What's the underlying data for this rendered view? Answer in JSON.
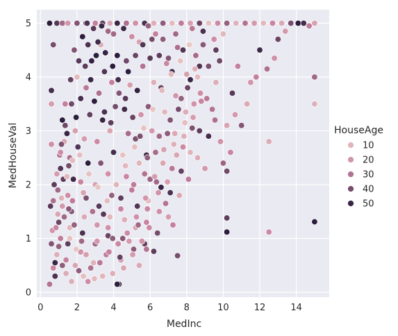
{
  "chart_data": {
    "type": "scatter",
    "title": "",
    "xlabel": "MedInc",
    "ylabel": "MedHouseVal",
    "xlim": [
      -0.2,
      15.8
    ],
    "ylim": [
      -0.09,
      5.25
    ],
    "x_ticks": [
      0,
      2,
      4,
      6,
      8,
      10,
      12,
      14
    ],
    "y_ticks": [
      0,
      1,
      2,
      3,
      4,
      5
    ],
    "grid": true,
    "background": "#EAEAF2",
    "hue": {
      "name": "HouseAge",
      "legend_title": "HouseAge",
      "legend_placement": "right",
      "min": 1,
      "max": 52,
      "color_low": "#EDD1CB",
      "color_high": "#2D1E3E",
      "legend_entries": [
        {
          "label": "10",
          "value": 10
        },
        {
          "label": "20",
          "value": 20
        },
        {
          "label": "30",
          "value": 30
        },
        {
          "label": "40",
          "value": 40
        },
        {
          "label": "50",
          "value": 50
        }
      ]
    },
    "points": [
      [
        0.5,
        5.0,
        52
      ],
      [
        0.9,
        5.0,
        45
      ],
      [
        1.2,
        5.0,
        33
      ],
      [
        1.5,
        5.0,
        20
      ],
      [
        2.0,
        5.0,
        38
      ],
      [
        2.5,
        5.0,
        52
      ],
      [
        3.0,
        5.0,
        27
      ],
      [
        3.4,
        5.0,
        44
      ],
      [
        3.8,
        5.0,
        15
      ],
      [
        4.2,
        5.0,
        50
      ],
      [
        4.7,
        5.0,
        31
      ],
      [
        5.2,
        5.0,
        22
      ],
      [
        5.7,
        5.0,
        47
      ],
      [
        6.2,
        5.0,
        12
      ],
      [
        6.7,
        5.0,
        36
      ],
      [
        7.2,
        5.0,
        8
      ],
      [
        7.7,
        5.0,
        28
      ],
      [
        8.2,
        5.0,
        17
      ],
      [
        8.7,
        5.0,
        42
      ],
      [
        9.2,
        5.0,
        6
      ],
      [
        9.7,
        5.0,
        24
      ],
      [
        10.2,
        5.0,
        35
      ],
      [
        10.7,
        5.0,
        11
      ],
      [
        11.2,
        5.0,
        30
      ],
      [
        11.7,
        5.0,
        19
      ],
      [
        12.2,
        5.0,
        9
      ],
      [
        12.7,
        5.0,
        26
      ],
      [
        13.2,
        5.0,
        14
      ],
      [
        13.7,
        5.0,
        40
      ],
      [
        14.1,
        5.0,
        52
      ],
      [
        14.4,
        5.0,
        48
      ],
      [
        15.0,
        5.0,
        16
      ],
      [
        0.5,
        0.15,
        30
      ],
      [
        0.7,
        0.45,
        25
      ],
      [
        0.6,
        0.9,
        38
      ],
      [
        0.55,
        1.6,
        45
      ],
      [
        0.6,
        2.75,
        22
      ],
      [
        0.6,
        3.5,
        18
      ],
      [
        0.6,
        3.75,
        48
      ],
      [
        0.7,
        4.6,
        40
      ],
      [
        0.8,
        0.55,
        50
      ],
      [
        0.9,
        0.7,
        12
      ],
      [
        1.0,
        0.85,
        35
      ],
      [
        1.1,
        1.0,
        28
      ],
      [
        1.0,
        1.3,
        42
      ],
      [
        1.2,
        1.6,
        19
      ],
      [
        0.95,
        1.9,
        33
      ],
      [
        1.1,
        2.3,
        46
      ],
      [
        1.3,
        2.8,
        15
      ],
      [
        1.2,
        3.2,
        52
      ],
      [
        1.4,
        0.6,
        27
      ],
      [
        1.5,
        0.9,
        44
      ],
      [
        1.6,
        1.2,
        10
      ],
      [
        1.7,
        1.5,
        37
      ],
      [
        1.5,
        1.8,
        23
      ],
      [
        1.8,
        2.1,
        49
      ],
      [
        1.6,
        2.5,
        31
      ],
      [
        1.9,
        3.0,
        17
      ],
      [
        1.7,
        3.5,
        41
      ],
      [
        2.0,
        4.0,
        8
      ],
      [
        2.1,
        0.4,
        36
      ],
      [
        2.2,
        0.75,
        21
      ],
      [
        2.3,
        1.1,
        47
      ],
      [
        2.4,
        1.4,
        14
      ],
      [
        2.5,
        1.75,
        39
      ],
      [
        2.2,
        2.05,
        26
      ],
      [
        2.6,
        2.4,
        52
      ],
      [
        2.4,
        2.85,
        18
      ],
      [
        2.7,
        3.3,
        43
      ],
      [
        2.5,
        3.8,
        29
      ],
      [
        2.8,
        4.3,
        51
      ],
      [
        2.9,
        0.55,
        11
      ],
      [
        3.0,
        0.9,
        34
      ],
      [
        3.1,
        1.25,
        20
      ],
      [
        3.2,
        1.6,
        45
      ],
      [
        3.0,
        2.0,
        16
      ],
      [
        3.3,
        2.4,
        38
      ],
      [
        3.1,
        2.8,
        24
      ],
      [
        3.4,
        3.2,
        50
      ],
      [
        3.2,
        3.7,
        31
      ],
      [
        3.5,
        4.1,
        46
      ],
      [
        3.3,
        4.6,
        13
      ],
      [
        3.6,
        0.7,
        28
      ],
      [
        3.7,
        1.05,
        42
      ],
      [
        3.8,
        1.4,
        9
      ],
      [
        3.9,
        1.8,
        35
      ],
      [
        3.7,
        2.2,
        22
      ],
      [
        4.0,
        2.6,
        48
      ],
      [
        3.8,
        3.0,
        15
      ],
      [
        4.1,
        3.45,
        40
      ],
      [
        3.9,
        3.9,
        27
      ],
      [
        4.2,
        4.4,
        52
      ],
      [
        4.0,
        4.8,
        33
      ],
      [
        4.3,
        0.15,
        47
      ],
      [
        4.4,
        0.6,
        19
      ],
      [
        4.5,
        1.0,
        37
      ],
      [
        4.6,
        1.35,
        12
      ],
      [
        4.4,
        1.75,
        44
      ],
      [
        4.7,
        2.15,
        25
      ],
      [
        4.5,
        2.55,
        6
      ],
      [
        4.8,
        2.95,
        32
      ],
      [
        4.6,
        3.4,
        49
      ],
      [
        4.9,
        3.85,
        17
      ],
      [
        4.7,
        4.3,
        41
      ],
      [
        5.0,
        4.75,
        23
      ],
      [
        5.1,
        0.8,
        36
      ],
      [
        5.2,
        1.2,
        14
      ],
      [
        5.3,
        1.6,
        46
      ],
      [
        5.1,
        2.0,
        28
      ],
      [
        5.4,
        2.4,
        10
      ],
      [
        5.2,
        2.85,
        39
      ],
      [
        5.5,
        3.3,
        21
      ],
      [
        5.3,
        3.75,
        51
      ],
      [
        5.6,
        4.2,
        30
      ],
      [
        5.4,
        4.65,
        16
      ],
      [
        5.7,
        0.9,
        43
      ],
      [
        5.8,
        1.3,
        26
      ],
      [
        5.9,
        1.7,
        8
      ],
      [
        6.0,
        2.1,
        34
      ],
      [
        5.8,
        2.55,
        48
      ],
      [
        6.1,
        3.0,
        19
      ],
      [
        5.9,
        3.45,
        37
      ],
      [
        6.2,
        3.9,
        12
      ],
      [
        6.0,
        4.35,
        45
      ],
      [
        6.3,
        4.8,
        27
      ],
      [
        6.4,
        1.1,
        40
      ],
      [
        6.5,
        1.5,
        22
      ],
      [
        6.6,
        1.95,
        50
      ],
      [
        6.7,
        2.4,
        15
      ],
      [
        6.5,
        2.9,
        33
      ],
      [
        6.8,
        3.35,
        9
      ],
      [
        6.6,
        3.8,
        42
      ],
      [
        6.9,
        4.25,
        25
      ],
      [
        6.7,
        4.7,
        36
      ],
      [
        7.0,
        1.4,
        18
      ],
      [
        7.1,
        1.85,
        47
      ],
      [
        7.2,
        2.3,
        29
      ],
      [
        7.3,
        2.75,
        11
      ],
      [
        7.1,
        3.2,
        38
      ],
      [
        7.4,
        3.65,
        20
      ],
      [
        7.2,
        4.1,
        49
      ],
      [
        7.5,
        4.55,
        31
      ],
      [
        7.6,
        1.8,
        14
      ],
      [
        7.7,
        2.25,
        43
      ],
      [
        7.8,
        2.7,
        24
      ],
      [
        7.9,
        3.15,
        7
      ],
      [
        7.7,
        3.6,
        35
      ],
      [
        8.0,
        4.05,
        17
      ],
      [
        7.8,
        4.5,
        46
      ],
      [
        8.1,
        2.1,
        28
      ],
      [
        8.2,
        2.6,
        10
      ],
      [
        8.3,
        3.05,
        39
      ],
      [
        8.4,
        3.5,
        21
      ],
      [
        8.2,
        3.95,
        50
      ],
      [
        8.5,
        4.4,
        32
      ],
      [
        8.6,
        2.5,
        13
      ],
      [
        8.7,
        3.0,
        44
      ],
      [
        8.8,
        3.55,
        26
      ],
      [
        8.6,
        4.0,
        8
      ],
      [
        8.9,
        4.6,
        37
      ],
      [
        9.0,
        2.3,
        19
      ],
      [
        9.2,
        2.9,
        48
      ],
      [
        9.4,
        3.4,
        30
      ],
      [
        9.6,
        3.9,
        12
      ],
      [
        9.8,
        4.3,
        41
      ],
      [
        9.5,
        4.7,
        23
      ],
      [
        10.0,
        2.4,
        34
      ],
      [
        10.2,
        3.1,
        16
      ],
      [
        10.5,
        3.7,
        45
      ],
      [
        10.8,
        4.2,
        27
      ],
      [
        10.0,
        4.8,
        9
      ],
      [
        11.0,
        3.1,
        38
      ],
      [
        11.5,
        3.9,
        20
      ],
      [
        12.0,
        4.5,
        49
      ],
      [
        12.4,
        4.15,
        31
      ],
      [
        12.5,
        2.8,
        13
      ],
      [
        13.0,
        4.7,
        42
      ],
      [
        10.2,
        1.38,
        44
      ],
      [
        10.2,
        1.12,
        52
      ],
      [
        10.2,
        2.25,
        41
      ],
      [
        12.5,
        1.12,
        24
      ],
      [
        15.0,
        1.31,
        52
      ],
      [
        15.0,
        3.5,
        11
      ],
      [
        15.0,
        4.0,
        33
      ],
      [
        7.5,
        0.68,
        40
      ],
      [
        6.2,
        0.76,
        44
      ],
      [
        5.8,
        0.8,
        30
      ],
      [
        5.4,
        0.5,
        14
      ],
      [
        4.2,
        0.15,
        52
      ],
      [
        2.6,
        0.2,
        23
      ],
      [
        1.7,
        0.2,
        12
      ],
      [
        1.2,
        0.5,
        36
      ],
      [
        0.8,
        0.3,
        47
      ],
      [
        0.65,
        1.15,
        21
      ],
      [
        0.75,
        2.0,
        44
      ],
      [
        1.05,
        2.55,
        30
      ],
      [
        1.35,
        3.5,
        27
      ],
      [
        1.85,
        4.5,
        38
      ],
      [
        2.3,
        4.75,
        52
      ],
      [
        2.9,
        4.9,
        45
      ],
      [
        3.35,
        4.95,
        50
      ],
      [
        3.7,
        4.85,
        33
      ],
      [
        2.6,
        4.6,
        47
      ],
      [
        3.05,
        4.4,
        52
      ],
      [
        2.45,
        4.2,
        44
      ],
      [
        2.75,
        3.95,
        50
      ],
      [
        2.2,
        3.6,
        48
      ],
      [
        1.95,
        3.25,
        52
      ],
      [
        2.05,
        2.7,
        46
      ],
      [
        1.55,
        2.35,
        40
      ],
      [
        1.45,
        2.95,
        50
      ],
      [
        1.25,
        2.1,
        44
      ],
      [
        2.95,
        3.55,
        52
      ],
      [
        3.5,
        3.35,
        47
      ],
      [
        3.85,
        3.15,
        44
      ],
      [
        4.3,
        3.7,
        38
      ],
      [
        4.8,
        4.1,
        52
      ],
      [
        5.2,
        4.4,
        42
      ],
      [
        5.6,
        4.6,
        46
      ],
      [
        6.1,
        4.7,
        40
      ],
      [
        4.55,
        4.9,
        49
      ],
      [
        5.9,
        4.95,
        35
      ],
      [
        6.5,
        4.4,
        44
      ],
      [
        7.0,
        4.35,
        38
      ],
      [
        7.4,
        4.8,
        33
      ],
      [
        8.3,
        4.9,
        29
      ],
      [
        8.9,
        4.85,
        47
      ],
      [
        9.6,
        4.5,
        44
      ],
      [
        9.2,
        4.2,
        39
      ],
      [
        8.7,
        4.2,
        46
      ],
      [
        8.05,
        3.8,
        42
      ],
      [
        7.55,
        3.4,
        40
      ],
      [
        6.95,
        2.95,
        36
      ],
      [
        6.3,
        2.6,
        32
      ],
      [
        5.7,
        2.2,
        30
      ],
      [
        5.0,
        1.9,
        28
      ],
      [
        4.4,
        1.55,
        26
      ],
      [
        3.7,
        1.2,
        22
      ],
      [
        3.1,
        0.95,
        20
      ],
      [
        2.5,
        0.7,
        17
      ],
      [
        1.9,
        0.5,
        15
      ],
      [
        1.4,
        0.35,
        13
      ],
      [
        0.95,
        1.45,
        15
      ],
      [
        1.15,
        1.75,
        11
      ],
      [
        1.45,
        2.15,
        9
      ],
      [
        1.75,
        2.45,
        8
      ],
      [
        2.15,
        2.55,
        7
      ],
      [
        2.65,
        2.2,
        6
      ],
      [
        3.15,
        1.95,
        5
      ],
      [
        3.65,
        1.7,
        8
      ],
      [
        4.15,
        2.0,
        10
      ],
      [
        4.65,
        2.35,
        9
      ],
      [
        5.15,
        2.7,
        7
      ],
      [
        5.65,
        3.05,
        6
      ],
      [
        6.15,
        3.4,
        5
      ],
      [
        6.65,
        3.75,
        8
      ],
      [
        7.15,
        4.05,
        9
      ],
      [
        7.65,
        4.3,
        6
      ],
      [
        8.15,
        4.6,
        4
      ],
      [
        8.45,
        4.15,
        11
      ],
      [
        7.95,
        3.35,
        13
      ],
      [
        7.35,
        2.95,
        14
      ],
      [
        6.75,
        2.65,
        16
      ],
      [
        6.25,
        2.15,
        18
      ],
      [
        5.75,
        1.75,
        20
      ],
      [
        5.25,
        1.4,
        22
      ],
      [
        4.75,
        1.1,
        24
      ],
      [
        4.25,
        0.9,
        25
      ],
      [
        3.75,
        0.75,
        27
      ],
      [
        3.25,
        0.55,
        29
      ],
      [
        2.75,
        0.45,
        31
      ],
      [
        2.25,
        0.95,
        33
      ],
      [
        1.85,
        1.25,
        35
      ],
      [
        1.55,
        1.55,
        37
      ],
      [
        1.15,
        2.75,
        39
      ],
      [
        1.35,
        3.1,
        41
      ],
      [
        1.65,
        3.95,
        43
      ],
      [
        2.1,
        4.3,
        45
      ],
      [
        2.55,
        5.0,
        47
      ],
      [
        3.15,
        4.65,
        49
      ],
      [
        3.55,
        4.45,
        51
      ],
      [
        3.95,
        4.2,
        52
      ],
      [
        4.25,
        3.95,
        48
      ],
      [
        4.65,
        3.6,
        45
      ],
      [
        5.05,
        3.25,
        42
      ],
      [
        5.45,
        2.9,
        39
      ],
      [
        5.85,
        2.5,
        36
      ],
      [
        6.35,
        2.05,
        33
      ],
      [
        6.85,
        1.65,
        30
      ],
      [
        7.25,
        1.25,
        27
      ],
      [
        5.95,
        1.2,
        24
      ],
      [
        5.55,
        0.95,
        21
      ],
      [
        5.05,
        0.7,
        18
      ],
      [
        4.55,
        0.45,
        15
      ],
      [
        3.95,
        0.35,
        12
      ],
      [
        3.4,
        0.3,
        10
      ],
      [
        2.95,
        0.25,
        8
      ],
      [
        2.35,
        0.3,
        7
      ],
      [
        1.95,
        0.8,
        5
      ],
      [
        1.6,
        1.0,
        6
      ],
      [
        0.85,
        1.2,
        26
      ],
      [
        0.7,
        1.7,
        31
      ],
      [
        0.9,
        2.2,
        18
      ],
      [
        1.1,
        2.6,
        23
      ],
      [
        1.3,
        1.4,
        33
      ],
      [
        1.75,
        1.7,
        28
      ],
      [
        2.35,
        1.85,
        16
      ],
      [
        2.85,
        1.5,
        31
      ],
      [
        3.45,
        1.45,
        45
      ],
      [
        3.95,
        1.0,
        36
      ],
      [
        4.35,
        0.65,
        43
      ],
      [
        4.85,
        0.95,
        19
      ],
      [
        5.35,
        1.25,
        33
      ],
      [
        5.85,
        1.55,
        25
      ],
      [
        6.45,
        1.85,
        21
      ],
      [
        6.95,
        2.05,
        17
      ],
      [
        7.45,
        2.55,
        15
      ],
      [
        7.85,
        2.9,
        12
      ],
      [
        8.35,
        3.25,
        18
      ],
      [
        8.75,
        3.7,
        23
      ],
      [
        9.1,
        3.6,
        29
      ],
      [
        9.55,
        3.2,
        31
      ],
      [
        9.85,
        2.8,
        21
      ],
      [
        10.4,
        2.6,
        26
      ],
      [
        10.65,
        3.3,
        19
      ],
      [
        11.3,
        3.5,
        14
      ],
      [
        11.8,
        4.0,
        27
      ],
      [
        12.8,
        4.35,
        22
      ],
      [
        13.4,
        4.85,
        19
      ],
      [
        14.7,
        4.95,
        28
      ]
    ]
  }
}
